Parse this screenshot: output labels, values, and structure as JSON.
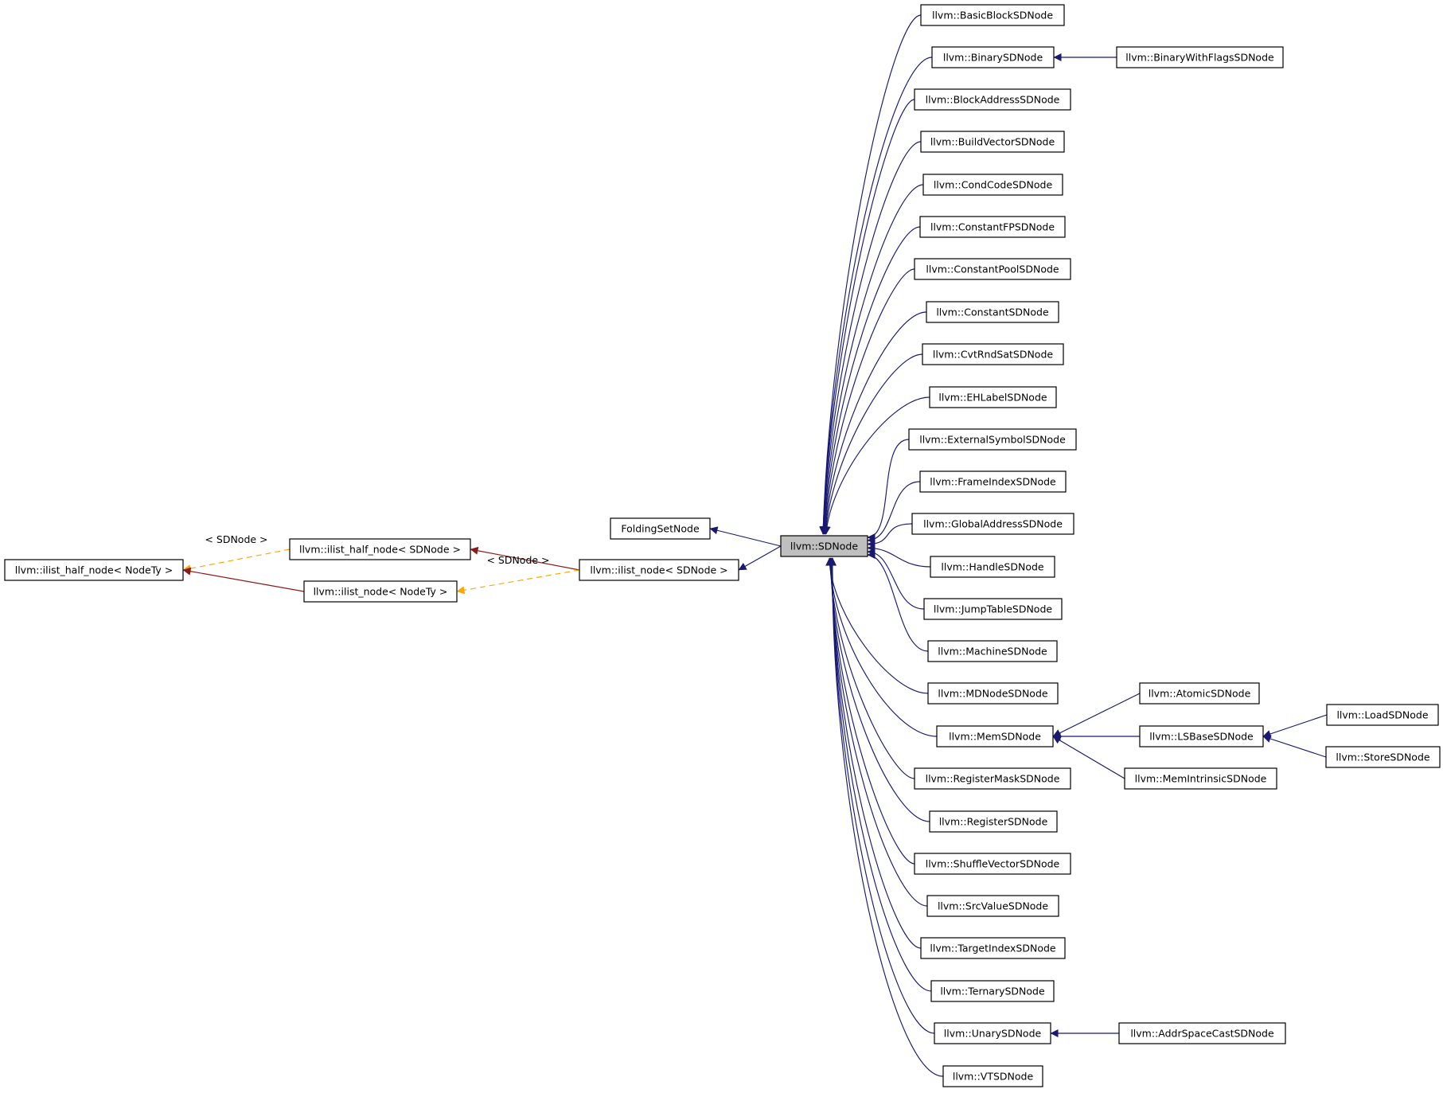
{
  "colors": {
    "inheritance": "#191970",
    "protected": "#8b1a1a",
    "template": "#ffa500",
    "focus_fill": "#bfbfbf"
  },
  "nodes": [
    {
      "id": "ilist_half_nodety",
      "label": "llvm::ilist_half_node< NodeTy >"
    },
    {
      "id": "ilist_half_sdnode",
      "label": "llvm::ilist_half_node< SDNode >"
    },
    {
      "id": "ilist_node_nodety",
      "label": "llvm::ilist_node< NodeTy >"
    },
    {
      "id": "ilist_node_sdnode",
      "label": "llvm::ilist_node< SDNode >"
    },
    {
      "id": "foldingsetnode",
      "label": "FoldingSetNode"
    },
    {
      "id": "sdnode",
      "label": "llvm::SDNode"
    },
    {
      "id": "basicblock",
      "label": "llvm::BasicBlockSDNode"
    },
    {
      "id": "binary",
      "label": "llvm::BinarySDNode"
    },
    {
      "id": "binarywithflags",
      "label": "llvm::BinaryWithFlagsSDNode"
    },
    {
      "id": "blockaddress",
      "label": "llvm::BlockAddressSDNode"
    },
    {
      "id": "buildvector",
      "label": "llvm::BuildVectorSDNode"
    },
    {
      "id": "condcode",
      "label": "llvm::CondCodeSDNode"
    },
    {
      "id": "constantfp",
      "label": "llvm::ConstantFPSDNode"
    },
    {
      "id": "constantpool",
      "label": "llvm::ConstantPoolSDNode"
    },
    {
      "id": "constant",
      "label": "llvm::ConstantSDNode"
    },
    {
      "id": "cvtrndsat",
      "label": "llvm::CvtRndSatSDNode"
    },
    {
      "id": "ehlabel",
      "label": "llvm::EHLabelSDNode"
    },
    {
      "id": "externalsymbol",
      "label": "llvm::ExternalSymbolSDNode"
    },
    {
      "id": "frameindex",
      "label": "llvm::FrameIndexSDNode"
    },
    {
      "id": "globaladdress",
      "label": "llvm::GlobalAddressSDNode"
    },
    {
      "id": "handle",
      "label": "llvm::HandleSDNode"
    },
    {
      "id": "jumptable",
      "label": "llvm::JumpTableSDNode"
    },
    {
      "id": "machine",
      "label": "llvm::MachineSDNode"
    },
    {
      "id": "mdnode",
      "label": "llvm::MDNodeSDNode"
    },
    {
      "id": "mem",
      "label": "llvm::MemSDNode"
    },
    {
      "id": "atomic",
      "label": "llvm::AtomicSDNode"
    },
    {
      "id": "lsbase",
      "label": "llvm::LSBaseSDNode"
    },
    {
      "id": "load",
      "label": "llvm::LoadSDNode"
    },
    {
      "id": "store",
      "label": "llvm::StoreSDNode"
    },
    {
      "id": "memintrinsic",
      "label": "llvm::MemIntrinsicSDNode"
    },
    {
      "id": "registermask",
      "label": "llvm::RegisterMaskSDNode"
    },
    {
      "id": "register",
      "label": "llvm::RegisterSDNode"
    },
    {
      "id": "shufflevector",
      "label": "llvm::ShuffleVectorSDNode"
    },
    {
      "id": "srcvalue",
      "label": "llvm::SrcValueSDNode"
    },
    {
      "id": "targetindex",
      "label": "llvm::TargetIndexSDNode"
    },
    {
      "id": "ternary",
      "label": "llvm::TernarySDNode"
    },
    {
      "id": "unary",
      "label": "llvm::UnarySDNode"
    },
    {
      "id": "addrspacecast",
      "label": "llvm::AddrSpaceCastSDNode"
    },
    {
      "id": "vt",
      "label": "llvm::VTSDNode"
    }
  ],
  "edges": [
    {
      "from": "ilist_half_sdnode",
      "to": "ilist_half_nodety",
      "kind": "template",
      "label": "< SDNode >"
    },
    {
      "from": "ilist_node_nodety",
      "to": "ilist_half_nodety",
      "kind": "protected",
      "label": ""
    },
    {
      "from": "ilist_node_sdnode",
      "to": "ilist_half_sdnode",
      "kind": "protected",
      "label": ""
    },
    {
      "from": "ilist_node_sdnode",
      "to": "ilist_node_nodety",
      "kind": "template",
      "label": "< SDNode >"
    },
    {
      "from": "sdnode",
      "to": "foldingsetnode",
      "kind": "inheritance",
      "label": ""
    },
    {
      "from": "sdnode",
      "to": "ilist_node_sdnode",
      "kind": "inheritance",
      "label": ""
    },
    {
      "from": "basicblock",
      "to": "sdnode",
      "kind": "inheritance",
      "label": ""
    },
    {
      "from": "binary",
      "to": "sdnode",
      "kind": "inheritance",
      "label": ""
    },
    {
      "from": "binarywithflags",
      "to": "binary",
      "kind": "inheritance",
      "label": ""
    },
    {
      "from": "blockaddress",
      "to": "sdnode",
      "kind": "inheritance",
      "label": ""
    },
    {
      "from": "buildvector",
      "to": "sdnode",
      "kind": "inheritance",
      "label": ""
    },
    {
      "from": "condcode",
      "to": "sdnode",
      "kind": "inheritance",
      "label": ""
    },
    {
      "from": "constantfp",
      "to": "sdnode",
      "kind": "inheritance",
      "label": ""
    },
    {
      "from": "constantpool",
      "to": "sdnode",
      "kind": "inheritance",
      "label": ""
    },
    {
      "from": "constant",
      "to": "sdnode",
      "kind": "inheritance",
      "label": ""
    },
    {
      "from": "cvtrndsat",
      "to": "sdnode",
      "kind": "inheritance",
      "label": ""
    },
    {
      "from": "ehlabel",
      "to": "sdnode",
      "kind": "inheritance",
      "label": ""
    },
    {
      "from": "externalsymbol",
      "to": "sdnode",
      "kind": "inheritance",
      "label": ""
    },
    {
      "from": "frameindex",
      "to": "sdnode",
      "kind": "inheritance",
      "label": ""
    },
    {
      "from": "globaladdress",
      "to": "sdnode",
      "kind": "inheritance",
      "label": ""
    },
    {
      "from": "handle",
      "to": "sdnode",
      "kind": "inheritance",
      "label": ""
    },
    {
      "from": "jumptable",
      "to": "sdnode",
      "kind": "inheritance",
      "label": ""
    },
    {
      "from": "machine",
      "to": "sdnode",
      "kind": "inheritance",
      "label": ""
    },
    {
      "from": "mdnode",
      "to": "sdnode",
      "kind": "inheritance",
      "label": ""
    },
    {
      "from": "mem",
      "to": "sdnode",
      "kind": "inheritance",
      "label": ""
    },
    {
      "from": "atomic",
      "to": "mem",
      "kind": "inheritance",
      "label": ""
    },
    {
      "from": "lsbase",
      "to": "mem",
      "kind": "inheritance",
      "label": ""
    },
    {
      "from": "memintrinsic",
      "to": "mem",
      "kind": "inheritance",
      "label": ""
    },
    {
      "from": "load",
      "to": "lsbase",
      "kind": "inheritance",
      "label": ""
    },
    {
      "from": "store",
      "to": "lsbase",
      "kind": "inheritance",
      "label": ""
    },
    {
      "from": "registermask",
      "to": "sdnode",
      "kind": "inheritance",
      "label": ""
    },
    {
      "from": "register",
      "to": "sdnode",
      "kind": "inheritance",
      "label": ""
    },
    {
      "from": "shufflevector",
      "to": "sdnode",
      "kind": "inheritance",
      "label": ""
    },
    {
      "from": "srcvalue",
      "to": "sdnode",
      "kind": "inheritance",
      "label": ""
    },
    {
      "from": "targetindex",
      "to": "sdnode",
      "kind": "inheritance",
      "label": ""
    },
    {
      "from": "ternary",
      "to": "sdnode",
      "kind": "inheritance",
      "label": ""
    },
    {
      "from": "unary",
      "to": "sdnode",
      "kind": "inheritance",
      "label": ""
    },
    {
      "from": "addrspacecast",
      "to": "unary",
      "kind": "inheritance",
      "label": ""
    },
    {
      "from": "vt",
      "to": "sdnode",
      "kind": "inheritance",
      "label": ""
    }
  ]
}
